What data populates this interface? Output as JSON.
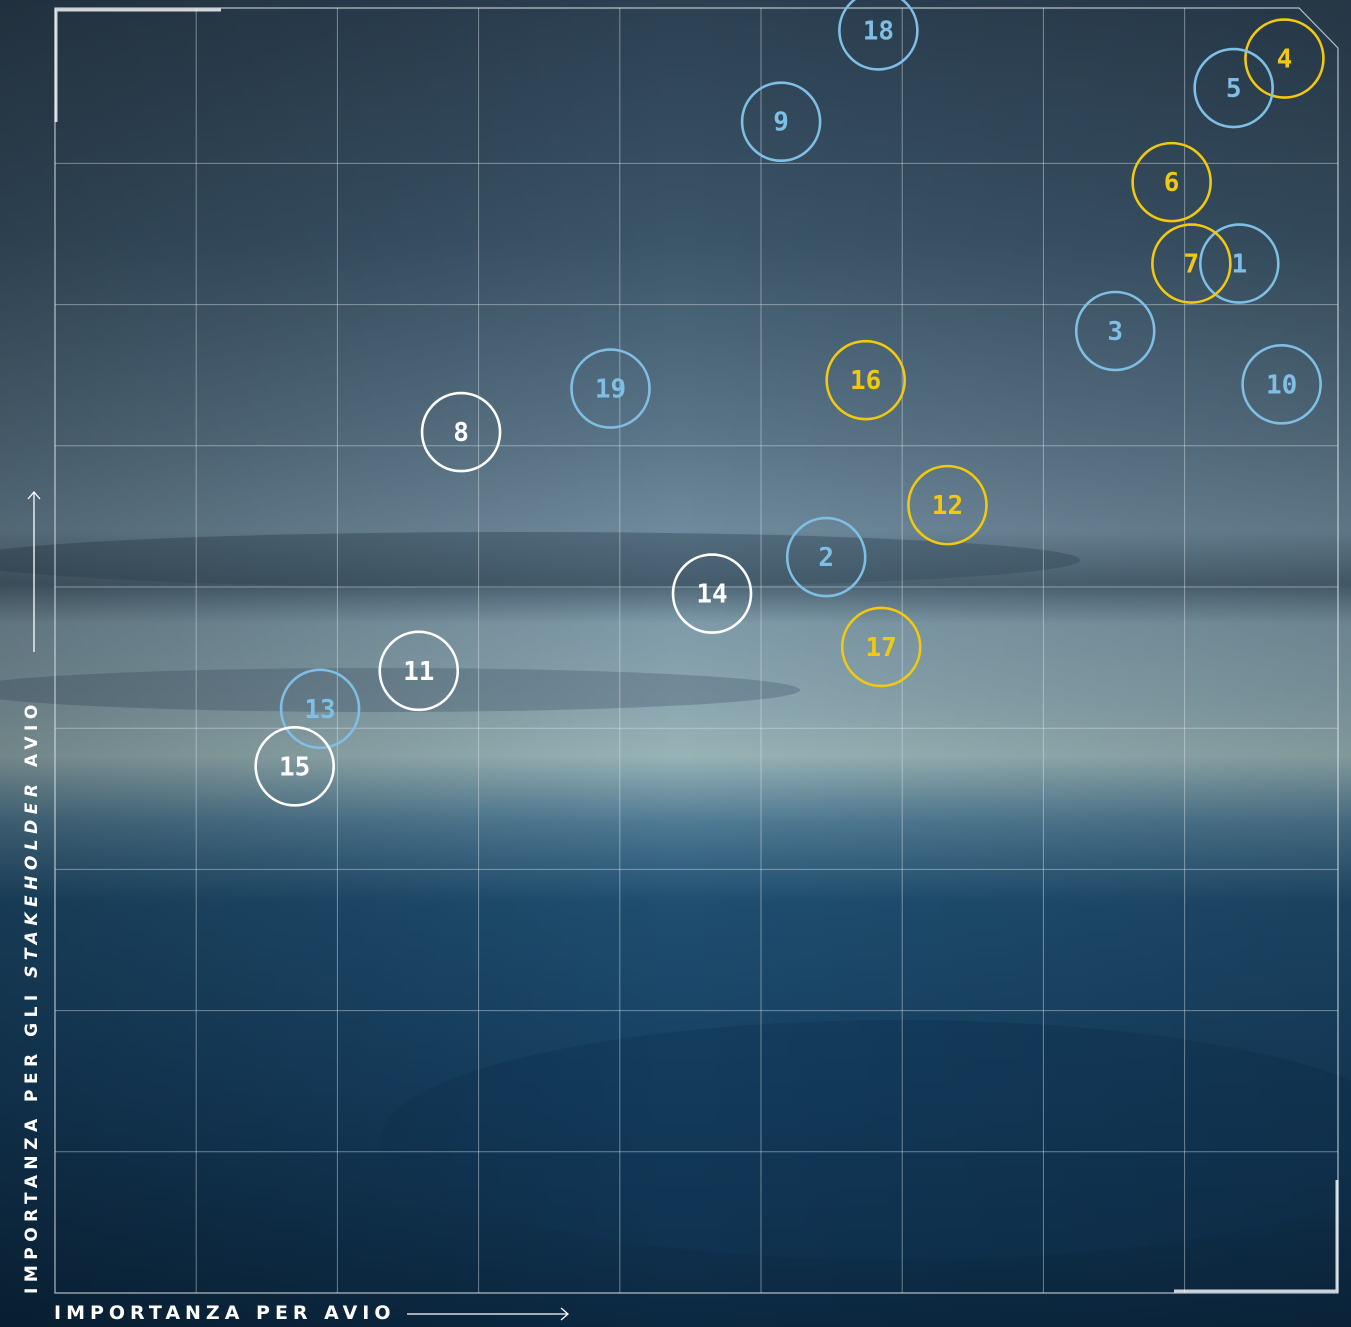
{
  "chart_data": {
    "type": "scatter",
    "xlabel": "IMPORTANZA PER AVIO",
    "ylabel_parts": [
      "IMPORTANZA PER GLI ",
      "STAKEHOLDER",
      " AVIO"
    ],
    "grid": true,
    "xlim": [
      0,
      9.1
    ],
    "ylim": [
      0,
      9.1
    ],
    "colors": {
      "blue": "#7fbfe6",
      "yellow": "#f2c90f",
      "white": "#ffffff"
    },
    "points": [
      {
        "label": "1",
        "x": 8.4,
        "y": 7.33,
        "color": "blue"
      },
      {
        "label": "2",
        "x": 5.47,
        "y": 5.24,
        "color": "blue"
      },
      {
        "label": "3",
        "x": 7.52,
        "y": 6.85,
        "color": "blue"
      },
      {
        "label": "4",
        "x": 8.72,
        "y": 8.79,
        "color": "yellow"
      },
      {
        "label": "5",
        "x": 8.36,
        "y": 8.58,
        "color": "blue"
      },
      {
        "label": "6",
        "x": 7.92,
        "y": 7.91,
        "color": "yellow"
      },
      {
        "label": "7",
        "x": 8.06,
        "y": 7.33,
        "color": "yellow"
      },
      {
        "label": "8",
        "x": 2.88,
        "y": 6.13,
        "color": "white"
      },
      {
        "label": "9",
        "x": 5.15,
        "y": 8.34,
        "color": "blue"
      },
      {
        "label": "10",
        "x": 8.7,
        "y": 6.47,
        "color": "blue"
      },
      {
        "label": "11",
        "x": 2.58,
        "y": 4.43,
        "color": "white"
      },
      {
        "label": "12",
        "x": 6.33,
        "y": 5.61,
        "color": "yellow"
      },
      {
        "label": "13",
        "x": 1.88,
        "y": 4.16,
        "color": "blue"
      },
      {
        "label": "14",
        "x": 4.66,
        "y": 4.98,
        "color": "white"
      },
      {
        "label": "15",
        "x": 1.7,
        "y": 3.75,
        "color": "white"
      },
      {
        "label": "16",
        "x": 5.75,
        "y": 6.5,
        "color": "yellow"
      },
      {
        "label": "17",
        "x": 5.86,
        "y": 4.6,
        "color": "yellow"
      },
      {
        "label": "18",
        "x": 5.84,
        "y": 8.99,
        "color": "blue"
      },
      {
        "label": "19",
        "x": 3.94,
        "y": 6.44,
        "color": "blue"
      }
    ]
  }
}
